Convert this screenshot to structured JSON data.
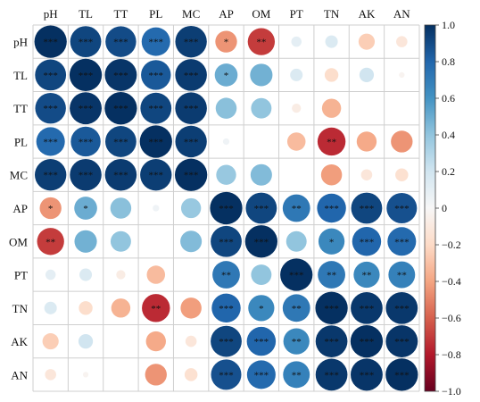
{
  "chart_data": {
    "type": "heatmap",
    "style": "circle correlation matrix",
    "variables": [
      "pH",
      "TL",
      "TT",
      "PL",
      "MC",
      "AP",
      "OM",
      "PT",
      "TN",
      "AK",
      "AN"
    ],
    "correlation": [
      [
        1.0,
        0.92,
        0.9,
        0.78,
        0.95,
        -0.45,
        -0.7,
        0.1,
        0.15,
        -0.25,
        -0.12
      ],
      [
        0.92,
        1.0,
        0.98,
        0.85,
        0.96,
        0.5,
        0.48,
        0.15,
        -0.18,
        0.2,
        -0.03
      ],
      [
        0.9,
        0.98,
        1.0,
        0.92,
        0.96,
        0.42,
        0.4,
        -0.08,
        -0.35,
        0.0,
        0.0
      ],
      [
        0.78,
        0.85,
        0.92,
        1.0,
        0.95,
        0.04,
        0.0,
        -0.32,
        -0.75,
        -0.38,
        -0.45
      ],
      [
        0.95,
        0.96,
        0.96,
        0.95,
        1.0,
        0.38,
        0.44,
        0.0,
        -0.42,
        -0.12,
        -0.16
      ],
      [
        -0.45,
        0.5,
        0.42,
        0.04,
        0.38,
        1.0,
        0.92,
        0.72,
        0.8,
        0.92,
        0.88
      ],
      [
        -0.7,
        0.48,
        0.4,
        0.0,
        0.44,
        0.92,
        1.0,
        0.4,
        0.65,
        0.8,
        0.78
      ],
      [
        0.1,
        0.15,
        -0.08,
        -0.32,
        0.0,
        0.72,
        0.4,
        1.0,
        0.72,
        0.65,
        0.68
      ],
      [
        0.15,
        -0.18,
        -0.35,
        -0.75,
        -0.42,
        0.8,
        0.65,
        0.72,
        1.0,
        0.97,
        0.97
      ],
      [
        -0.25,
        0.2,
        0.0,
        -0.38,
        -0.12,
        0.92,
        0.8,
        0.65,
        0.97,
        1.0,
        0.98
      ],
      [
        -0.12,
        -0.03,
        0.0,
        -0.45,
        -0.16,
        0.88,
        0.78,
        0.68,
        0.97,
        0.98,
        1.0
      ]
    ],
    "significance": [
      [
        "***",
        "***",
        "***",
        "***",
        "***",
        "*",
        "**",
        "",
        "",
        "",
        ""
      ],
      [
        "***",
        "***",
        "***",
        "***",
        "***",
        "*",
        "",
        "",
        "",
        "",
        ""
      ],
      [
        "***",
        "***",
        "***",
        "***",
        "***",
        "",
        "",
        "",
        "",
        "",
        ""
      ],
      [
        "***",
        "***",
        "***",
        "***",
        "***",
        "",
        "",
        "",
        "**",
        "",
        ""
      ],
      [
        "***",
        "***",
        "***",
        "***",
        "***",
        "",
        "",
        "",
        "",
        "",
        ""
      ],
      [
        "*",
        "*",
        "",
        "",
        "",
        "***",
        "***",
        "**",
        "***",
        "***",
        "***"
      ],
      [
        "**",
        "",
        "",
        "",
        "",
        "***",
        "***",
        "",
        "*",
        "***",
        "***"
      ],
      [
        "",
        "",
        "",
        "",
        "",
        "**",
        "",
        "***",
        "**",
        "**",
        "**"
      ],
      [
        "",
        "",
        "",
        "**",
        "",
        "***",
        "*",
        "**",
        "***",
        "***",
        "***"
      ],
      [
        "",
        "",
        "",
        "",
        "",
        "***",
        "***",
        "**",
        "***",
        "***",
        "***"
      ],
      [
        "",
        "",
        "",
        "",
        "",
        "***",
        "***",
        "**",
        "***",
        "***",
        "***"
      ]
    ],
    "colorbar": {
      "range": [
        -1.0,
        1.0
      ],
      "ticks": [
        "1.0",
        "0.8",
        "0.6",
        "0.4",
        "0.2",
        "0",
        "−0.2",
        "−0.4",
        "−0.6",
        "−0.8",
        "−1.0"
      ],
      "tick_values": [
        1.0,
        0.8,
        0.6,
        0.4,
        0.2,
        0,
        -0.2,
        -0.4,
        -0.6,
        -0.8,
        -1.0
      ],
      "colormap": "RdBu",
      "stops": [
        "#67001f",
        "#b2182b",
        "#d6604d",
        "#f4a582",
        "#fddbc7",
        "#f7f7f7",
        "#d1e5f0",
        "#92c5de",
        "#4393c3",
        "#2166ac",
        "#053061"
      ]
    },
    "grid": true
  }
}
